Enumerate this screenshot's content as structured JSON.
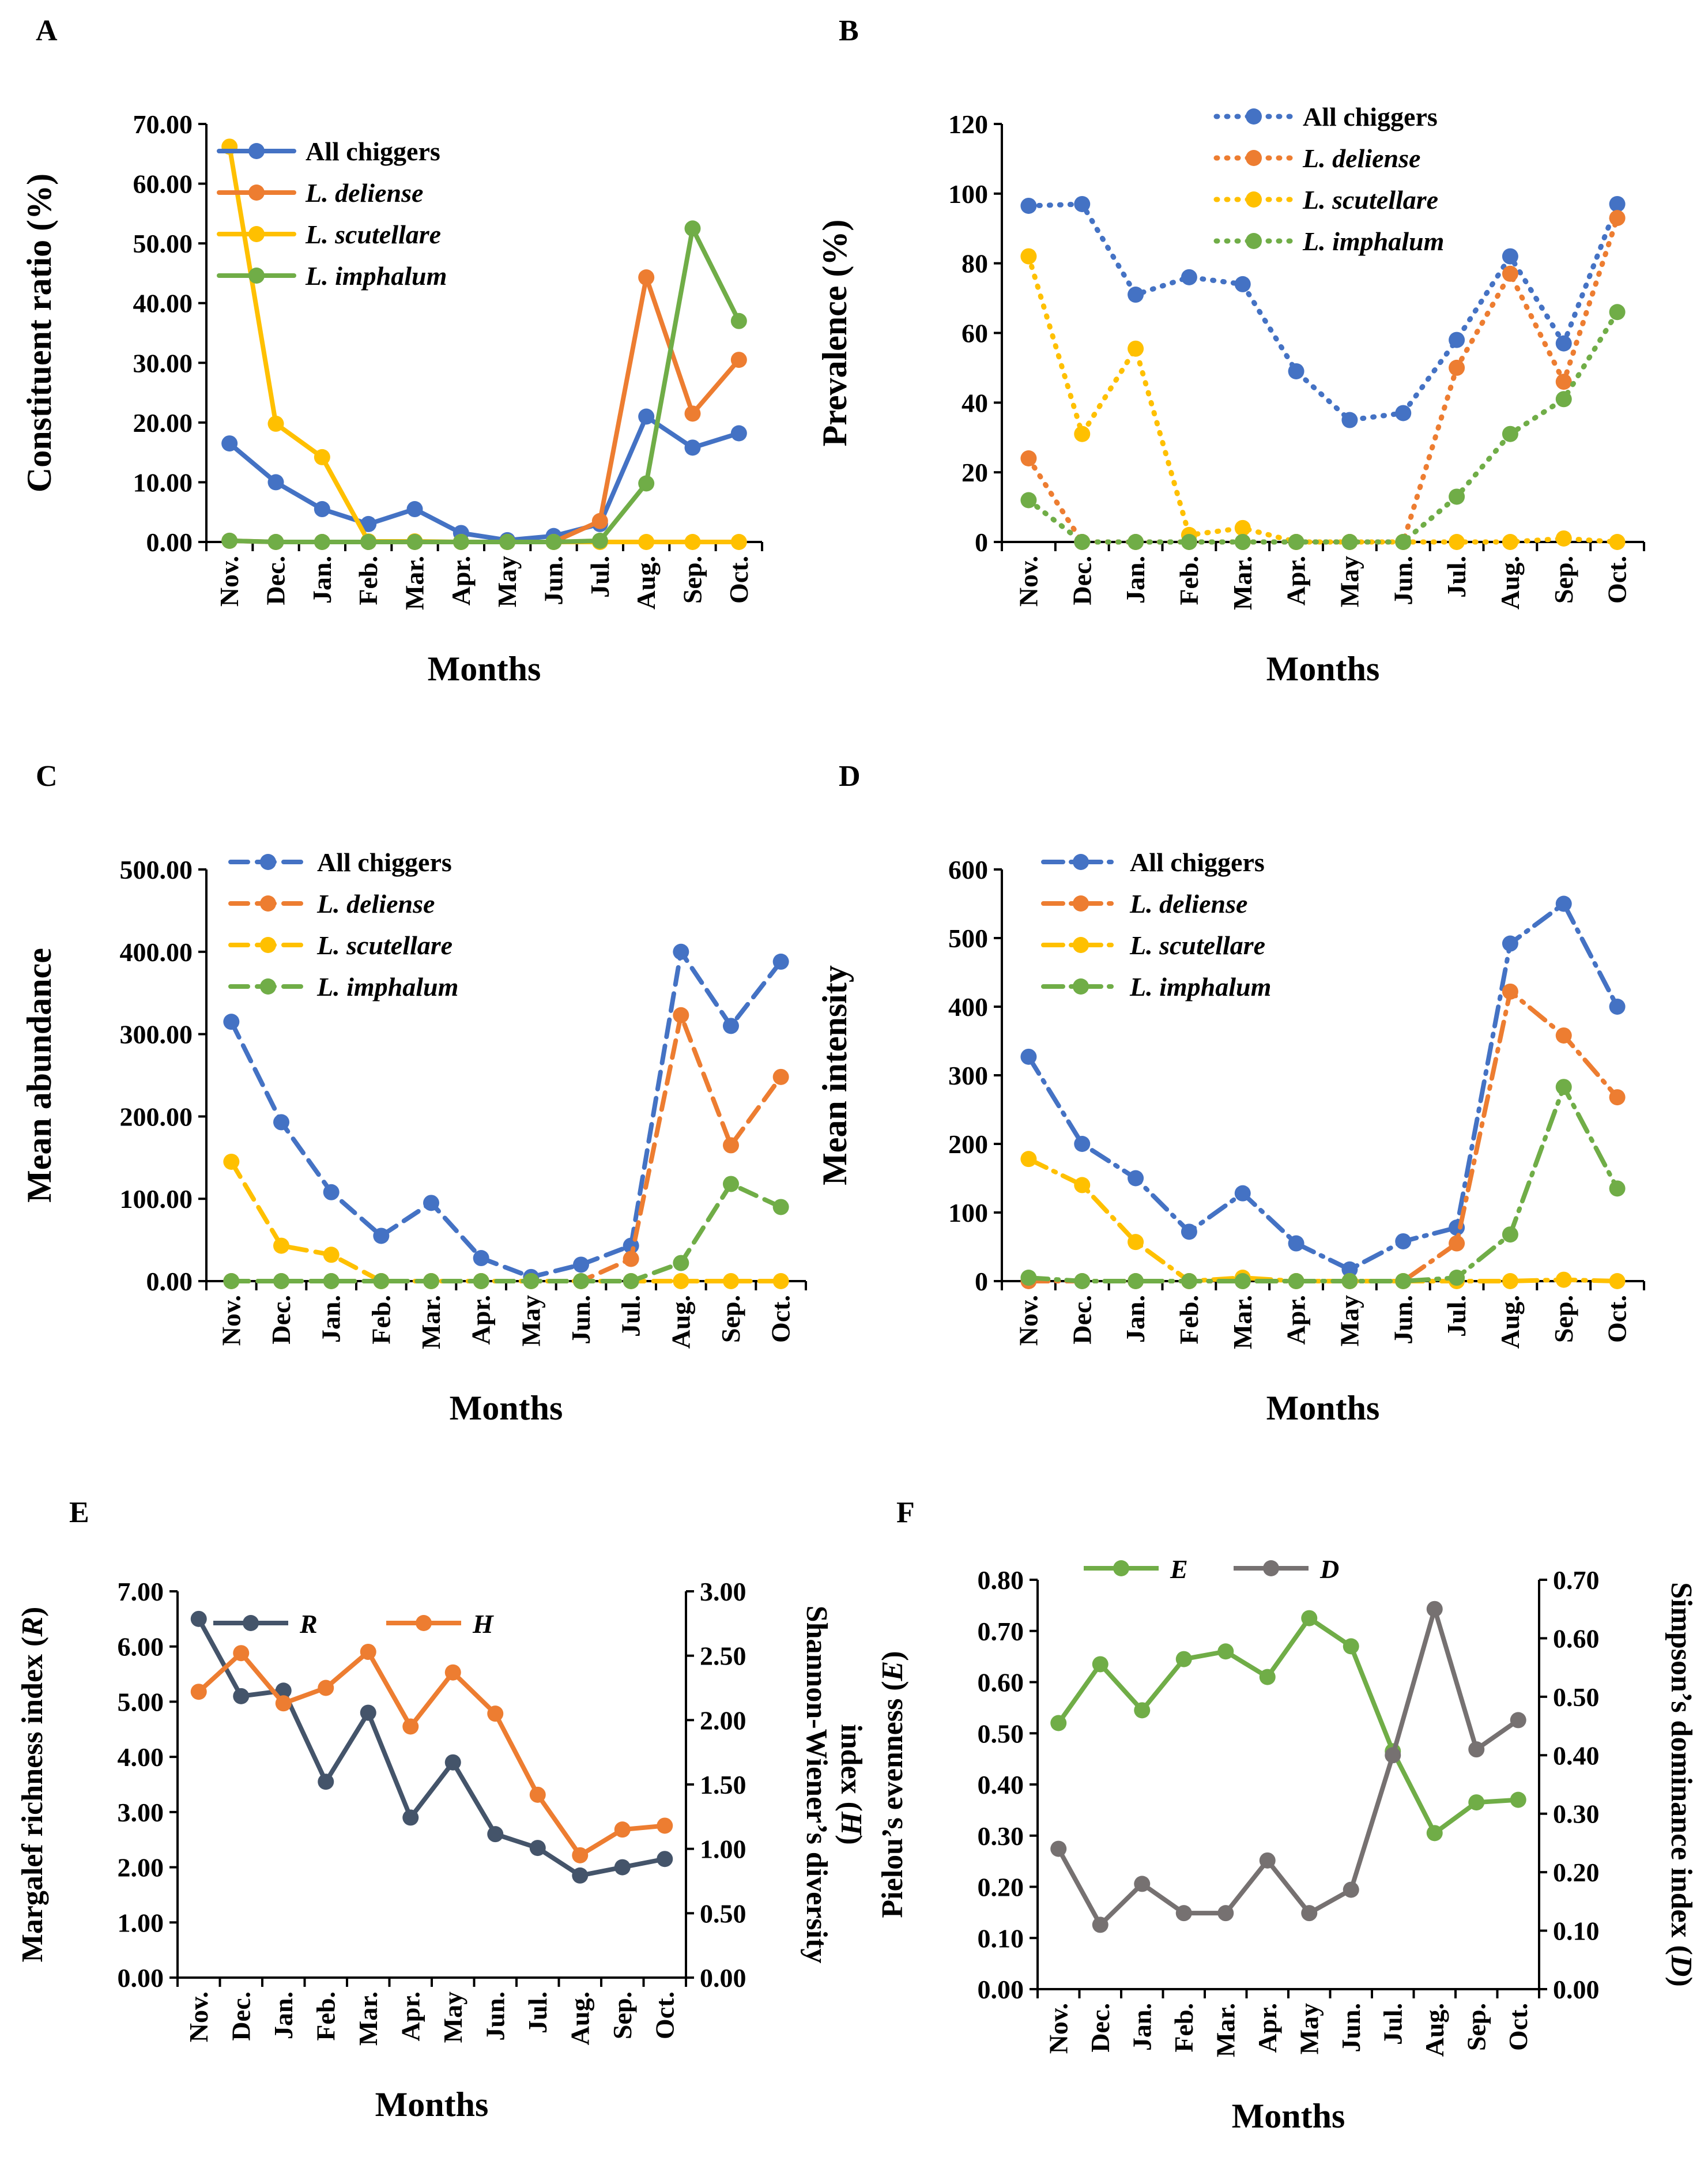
{
  "colors": {
    "all": "#4472C4",
    "deliense": "#ED7D31",
    "scutellare": "#FFC000",
    "imphalum": "#70AD47",
    "R": "#44546A",
    "H": "#ED7D31",
    "E": "#70AD47",
    "D": "#767171",
    "axis": "#000000"
  },
  "chart_data": [
    {
      "id": "A",
      "panel_label": "A",
      "type": "line",
      "line_style": "solid",
      "title": "",
      "xlabel": "Months",
      "ylabel": "Constituent ratio (%)",
      "ylim": [
        0,
        70
      ],
      "ytick_labels": [
        "0.00",
        "10.00",
        "20.00",
        "30.00",
        "40.00",
        "50.00",
        "60.00",
        "70.00"
      ],
      "categories": [
        "Nov.",
        "Dec.",
        "Jan.",
        "Feb.",
        "Mar.",
        "Apr.",
        "May",
        "Jun.",
        "Jul.",
        "Aug.",
        "Sep.",
        "Oct."
      ],
      "legend_position": "top-left",
      "series": [
        {
          "name": "All chiggers",
          "italic": false,
          "color_key": "all",
          "values": [
            16.5,
            10.0,
            5.5,
            3.0,
            5.5,
            1.5,
            0.3,
            1.0,
            3.0,
            21.0,
            15.8,
            18.2
          ]
        },
        {
          "name": "L. deliense",
          "italic": true,
          "color_key": "deliense",
          "values": [
            0.2,
            0.0,
            0.0,
            0.0,
            0.0,
            0.0,
            0.0,
            0.0,
            3.5,
            44.3,
            21.5,
            30.5
          ]
        },
        {
          "name": "L. scutellare",
          "italic": true,
          "color_key": "scutellare",
          "values": [
            66.2,
            19.8,
            14.2,
            0.1,
            0.1,
            0.0,
            0.0,
            0.0,
            0.0,
            0.0,
            0.0,
            0.0
          ]
        },
        {
          "name": "L. imphalum",
          "italic": true,
          "color_key": "imphalum",
          "values": [
            0.2,
            0.0,
            0.0,
            0.0,
            0.0,
            0.0,
            0.0,
            0.0,
            0.2,
            9.8,
            52.5,
            37.0
          ]
        }
      ]
    },
    {
      "id": "B",
      "panel_label": "B",
      "type": "line",
      "line_style": "dotted",
      "title": "",
      "xlabel": "Months",
      "ylabel": "Prevalence (%)",
      "ylim": [
        0,
        120
      ],
      "ytick_labels": [
        "0",
        "20",
        "40",
        "60",
        "80",
        "100",
        "120"
      ],
      "categories": [
        "Nov.",
        "Dec.",
        "Jan.",
        "Feb.",
        "Mar.",
        "Apr.",
        "May",
        "Jun.",
        "Jul.",
        "Aug.",
        "Sep.",
        "Oct."
      ],
      "legend_position": "top-center",
      "series": [
        {
          "name": "All chiggers",
          "italic": false,
          "color_key": "all",
          "values": [
            96.5,
            97.0,
            71.0,
            76.0,
            74.0,
            49.0,
            35.0,
            37.0,
            58.0,
            82.0,
            57.0,
            97.0
          ]
        },
        {
          "name": "L. deliense",
          "italic": true,
          "color_key": "deliense",
          "values": [
            24.0,
            0.0,
            0.0,
            0.0,
            0.0,
            0.0,
            0.0,
            0.0,
            50.0,
            77.0,
            46.0,
            93.0
          ]
        },
        {
          "name": "L. scutellare",
          "italic": true,
          "color_key": "scutellare",
          "values": [
            82.0,
            31.0,
            55.5,
            2.0,
            4.0,
            0.0,
            0.0,
            0.0,
            0.0,
            0.0,
            1.0,
            0.0
          ]
        },
        {
          "name": "L. imphalum",
          "italic": true,
          "color_key": "imphalum",
          "values": [
            12.0,
            0.0,
            0.0,
            0.0,
            0.0,
            0.0,
            0.0,
            0.0,
            13.0,
            31.0,
            41.0,
            66.0
          ]
        }
      ]
    },
    {
      "id": "C",
      "panel_label": "C",
      "type": "line",
      "line_style": "dashed",
      "title": "",
      "xlabel": "Months",
      "ylabel": "Mean abundance",
      "ylim": [
        0,
        500
      ],
      "ytick_labels": [
        "0.00",
        "100.00",
        "200.00",
        "300.00",
        "400.00",
        "500.00"
      ],
      "categories": [
        "Nov.",
        "Dec.",
        "Jan.",
        "Feb.",
        "Mar.",
        "Apr.",
        "May",
        "Jun.",
        "Jul.",
        "Aug.",
        "Sep.",
        "Oct."
      ],
      "legend_position": "top-left",
      "series": [
        {
          "name": "All chiggers",
          "italic": false,
          "color_key": "all",
          "values": [
            315,
            193,
            108,
            55,
            95,
            28,
            5,
            20,
            43,
            400,
            310,
            388
          ]
        },
        {
          "name": "L. deliense",
          "italic": true,
          "color_key": "deliense",
          "values": [
            0,
            0,
            0,
            0,
            0,
            0,
            0,
            0,
            27,
            323,
            165,
            248
          ]
        },
        {
          "name": "L. scutellare",
          "italic": true,
          "color_key": "scutellare",
          "values": [
            145,
            43,
            32,
            0,
            0,
            0,
            0,
            0,
            0,
            0,
            0,
            0
          ]
        },
        {
          "name": "L. imphalum",
          "italic": true,
          "color_key": "imphalum",
          "values": [
            0,
            0,
            0,
            0,
            0,
            0,
            0,
            0,
            0,
            22,
            118,
            90
          ]
        }
      ]
    },
    {
      "id": "D",
      "panel_label": "D",
      "type": "line",
      "line_style": "dashdot",
      "title": "",
      "xlabel": "Months",
      "ylabel": "Mean intensity",
      "ylim": [
        0,
        600
      ],
      "ytick_labels": [
        "0",
        "100",
        "200",
        "300",
        "400",
        "500",
        "600"
      ],
      "categories": [
        "Nov.",
        "Dec.",
        "Jan.",
        "Feb.",
        "Mar.",
        "Apr.",
        "May",
        "Jun.",
        "Jul.",
        "Aug.",
        "Sep.",
        "Oct."
      ],
      "legend_position": "top-left",
      "series": [
        {
          "name": "All chiggers",
          "italic": false,
          "color_key": "all",
          "values": [
            327,
            200,
            150,
            72,
            128,
            55,
            17,
            58,
            78,
            492,
            550,
            400
          ]
        },
        {
          "name": "L. deliense",
          "italic": true,
          "color_key": "deliense",
          "values": [
            0,
            0,
            0,
            0,
            0,
            0,
            0,
            0,
            55,
            422,
            358,
            268
          ]
        },
        {
          "name": "L. scutellare",
          "italic": true,
          "color_key": "scutellare",
          "values": [
            178,
            140,
            57,
            0,
            5,
            0,
            0,
            0,
            0,
            0,
            2,
            0
          ]
        },
        {
          "name": "L. imphalum",
          "italic": true,
          "color_key": "imphalum",
          "values": [
            5,
            0,
            0,
            0,
            0,
            0,
            0,
            0,
            5,
            68,
            283,
            135
          ]
        }
      ]
    },
    {
      "id": "E",
      "panel_label": "E",
      "type": "line",
      "line_style": "solid",
      "title": "",
      "xlabel": "Months",
      "ylabel": "Margalef richness index (R)",
      "ylabel_parts": [
        "Margalef richness index (",
        "R",
        ")"
      ],
      "y2label_line1": "Shannon-Wiener’s diversity",
      "y2label_line2_parts": [
        "index (",
        "H",
        ")"
      ],
      "ylim": [
        0,
        7
      ],
      "y2lim": [
        0,
        3
      ],
      "ytick_labels": [
        "0.00",
        "1.00",
        "2.00",
        "3.00",
        "4.00",
        "5.00",
        "6.00",
        "7.00"
      ],
      "y2tick_labels": [
        "0.00",
        "0.50",
        "1.00",
        "1.50",
        "2.00",
        "2.50",
        "3.00"
      ],
      "categories": [
        "Nov.",
        "Dec.",
        "Jan.",
        "Feb.",
        "Mar.",
        "Apr.",
        "May",
        "Jun.",
        "Jul.",
        "Aug.",
        "Sep.",
        "Oct."
      ],
      "legend_position": "top",
      "series": [
        {
          "name": "R",
          "italic": true,
          "color_key": "R",
          "axis": "left",
          "values": [
            6.5,
            5.1,
            5.2,
            3.55,
            4.8,
            2.9,
            3.9,
            2.6,
            2.35,
            1.85,
            2.0,
            2.15
          ]
        },
        {
          "name": "H",
          "italic": true,
          "color_key": "H",
          "axis": "right",
          "values": [
            2.22,
            2.52,
            2.13,
            2.25,
            2.53,
            1.95,
            2.37,
            2.05,
            1.42,
            0.95,
            1.15,
            1.18
          ]
        }
      ]
    },
    {
      "id": "F",
      "panel_label": "F",
      "type": "line",
      "line_style": "solid",
      "title": "",
      "xlabel": "Months",
      "ylabel": "Pielou’s evenness (E)",
      "ylabel_parts": [
        "Pielou’s evenness (",
        "E",
        ")"
      ],
      "y2label": "Simpson’s dominance index (D)",
      "y2label_parts": [
        "Simpson’s dominance index (",
        "D",
        ")"
      ],
      "ylim": [
        0,
        0.8
      ],
      "y2lim": [
        0,
        0.7
      ],
      "ytick_labels": [
        "0.00",
        "0.10",
        "0.20",
        "0.30",
        "0.40",
        "0.50",
        "0.60",
        "0.70",
        "0.80"
      ],
      "y2tick_labels": [
        "0.00",
        "0.10",
        "0.20",
        "0.30",
        "0.40",
        "0.50",
        "0.60",
        "0.70"
      ],
      "categories": [
        "Nov.",
        "Dec.",
        "Jan.",
        "Feb.",
        "Mar.",
        "Apr.",
        "May",
        "Jun.",
        "Jul.",
        "Aug.",
        "Sep.",
        "Oct."
      ],
      "legend_position": "top",
      "series": [
        {
          "name": "E",
          "italic": true,
          "color_key": "E",
          "axis": "left",
          "values": [
            0.52,
            0.635,
            0.545,
            0.645,
            0.66,
            0.61,
            0.725,
            0.67,
            0.465,
            0.305,
            0.365,
            0.37
          ]
        },
        {
          "name": "D",
          "italic": true,
          "color_key": "D",
          "axis": "right",
          "values": [
            0.24,
            0.11,
            0.18,
            0.13,
            0.13,
            0.22,
            0.13,
            0.17,
            0.4,
            0.65,
            0.41,
            0.46
          ]
        }
      ]
    }
  ]
}
